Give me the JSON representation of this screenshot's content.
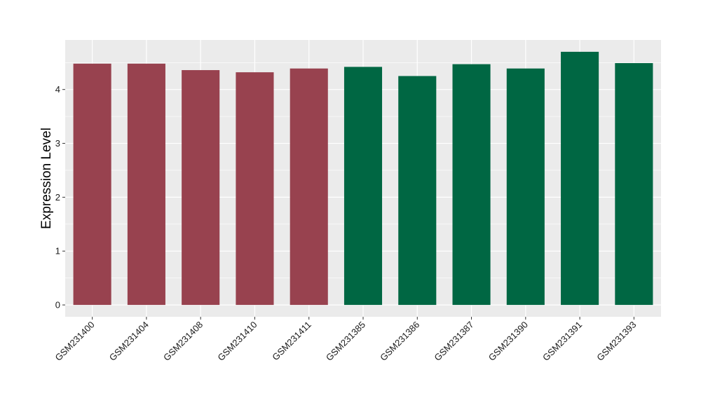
{
  "chart_data": {
    "type": "bar",
    "title": "",
    "xlabel": "",
    "ylabel": "Expression Level",
    "ylim": [
      -0.22,
      4.92
    ],
    "yticks": [
      0,
      1,
      2,
      3,
      4
    ],
    "categories": [
      "GSM231400",
      "GSM231404",
      "GSM231408",
      "GSM231410",
      "GSM231411",
      "GSM231385",
      "GSM231386",
      "GSM231387",
      "GSM231390",
      "GSM231391",
      "GSM231393"
    ],
    "values": [
      4.48,
      4.48,
      4.36,
      4.32,
      4.39,
      4.42,
      4.25,
      4.47,
      4.39,
      4.7,
      4.49
    ],
    "bar_colors": [
      "#98424F",
      "#98424F",
      "#98424F",
      "#98424F",
      "#98424F",
      "#006743",
      "#006743",
      "#006743",
      "#006743",
      "#006743",
      "#006743"
    ],
    "panel_background": "#EBEBEB",
    "grid": true,
    "legend": false
  }
}
